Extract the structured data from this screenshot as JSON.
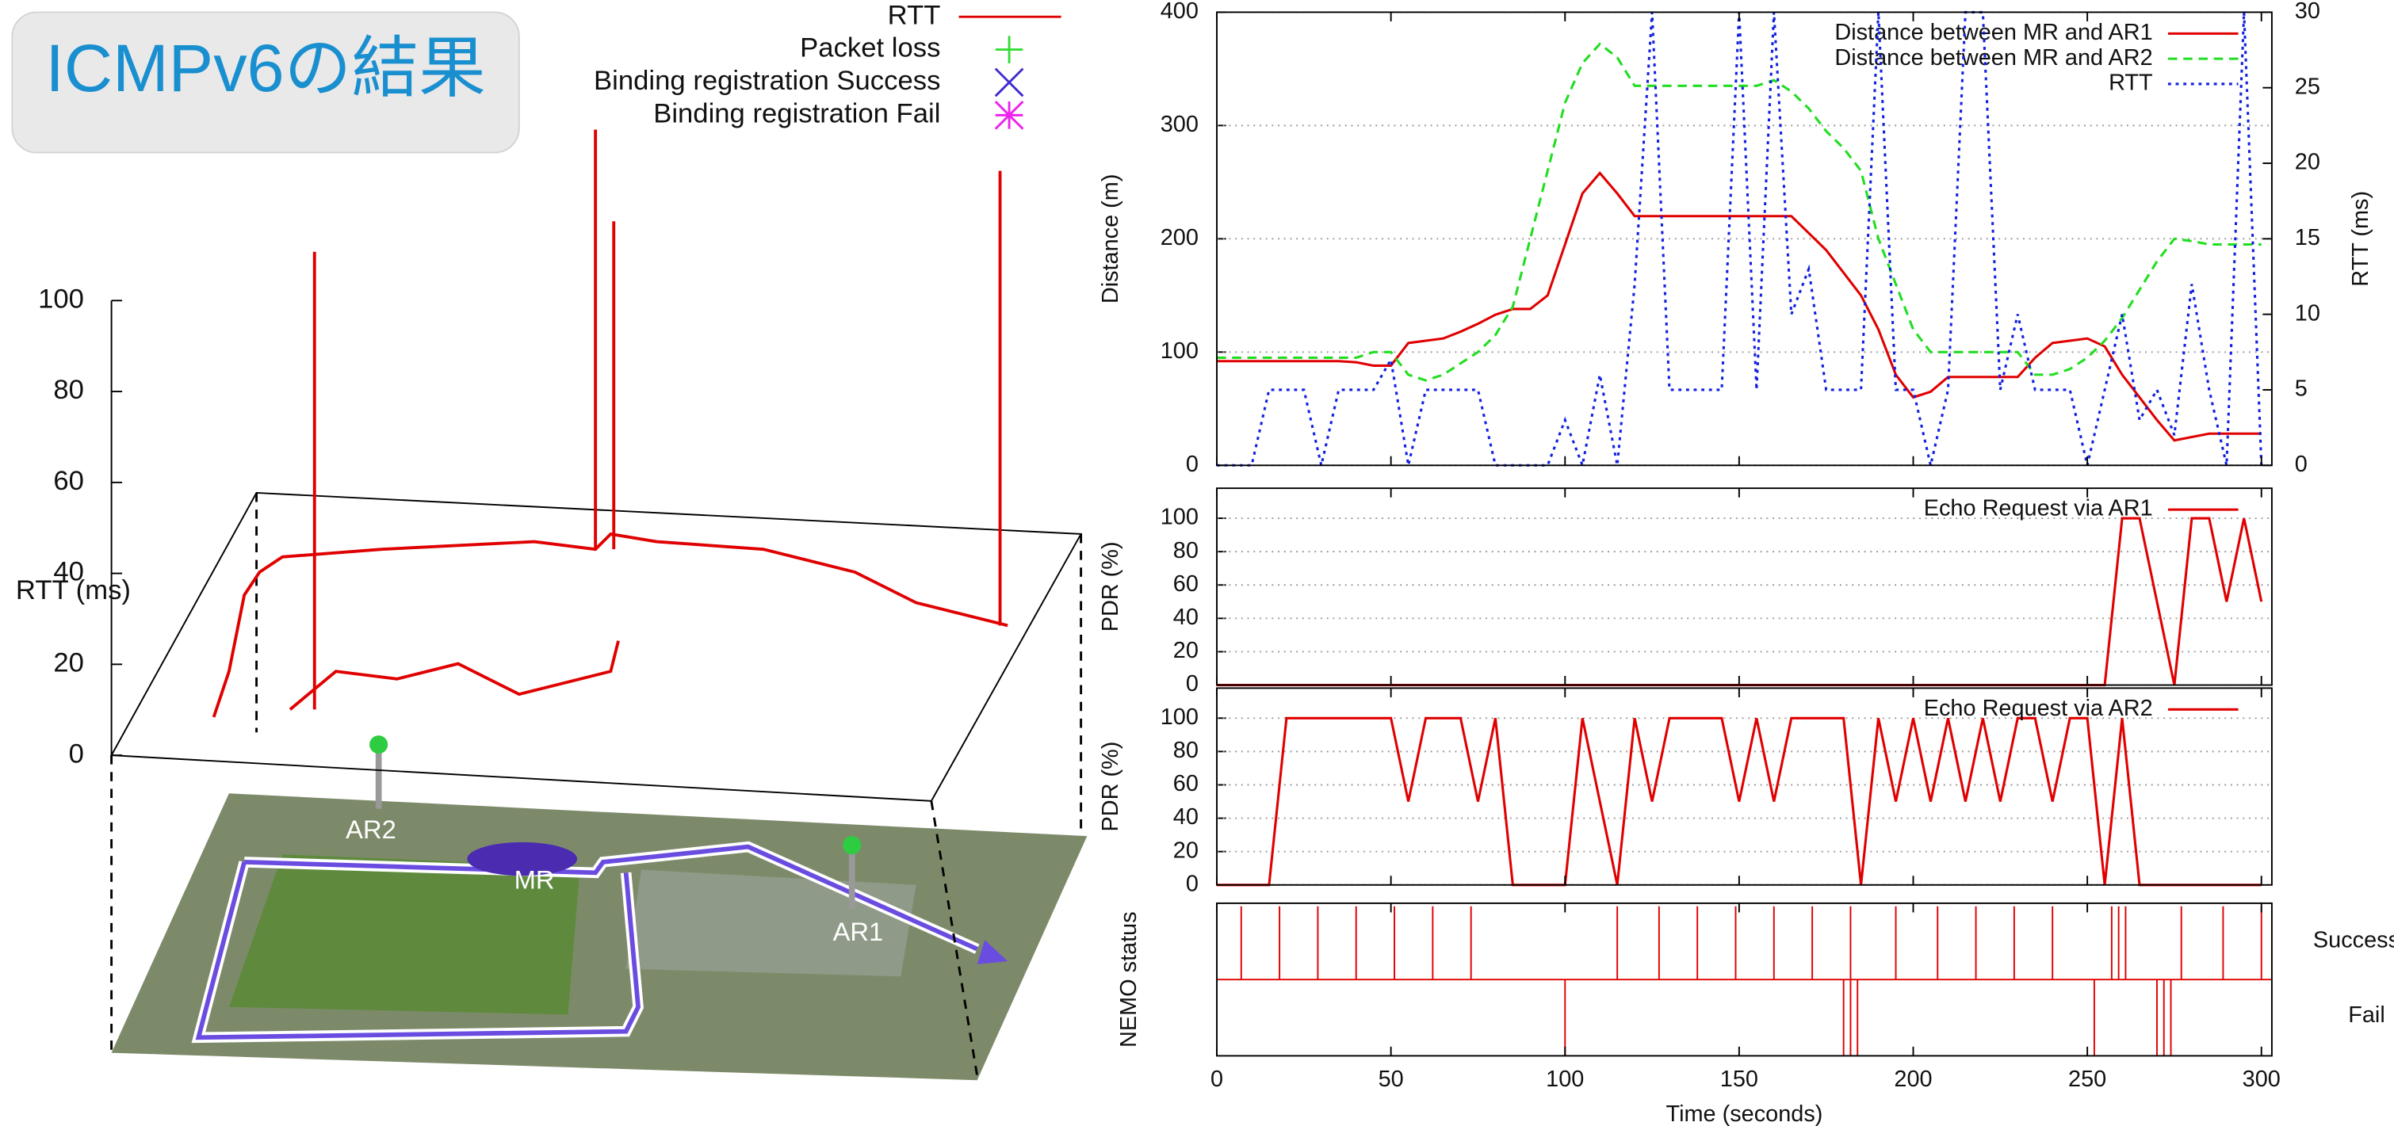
{
  "chart_data": [
    {
      "type": "line3d",
      "title": "ICMPv6の結果",
      "zlabel": "RTT (ms)",
      "zlim": [
        0,
        100
      ],
      "zticks": [
        0,
        20,
        40,
        60,
        80,
        100
      ],
      "series": [
        {
          "name": "RTT",
          "color": "#e00000",
          "marker": "line"
        },
        {
          "name": "Packet loss",
          "color": "#33dd33",
          "marker": "plus"
        },
        {
          "name": "Binding registration Success",
          "color": "#3f2ad0",
          "marker": "cross"
        },
        {
          "name": "Binding registration Fail",
          "color": "#ee22ee",
          "marker": "star"
        }
      ],
      "annotations": [
        "AR2",
        "MR",
        "AR1"
      ]
    },
    {
      "type": "line",
      "ylabel": "Distance (m)",
      "y2label": "RTT (ms)",
      "xlim": [
        0,
        303
      ],
      "ylim": [
        0,
        400
      ],
      "yticks": [
        0,
        100,
        200,
        300,
        400
      ],
      "y2lim": [
        0,
        30
      ],
      "y2ticks": [
        0,
        5,
        10,
        15,
        20,
        25,
        30
      ],
      "grid": true,
      "x": [
        0,
        5,
        10,
        15,
        20,
        25,
        30,
        35,
        40,
        45,
        50,
        55,
        60,
        65,
        70,
        75,
        80,
        85,
        90,
        95,
        100,
        105,
        110,
        115,
        120,
        125,
        130,
        135,
        140,
        145,
        150,
        155,
        160,
        165,
        170,
        175,
        180,
        185,
        190,
        195,
        200,
        205,
        210,
        215,
        220,
        225,
        230,
        235,
        240,
        245,
        250,
        255,
        260,
        265,
        270,
        275,
        280,
        285,
        290,
        295,
        300
      ],
      "series": [
        {
          "name": "Distance between MR and AR1",
          "color": "#e00000",
          "dash": "solid",
          "values": [
            92,
            92,
            92,
            92,
            92,
            92,
            92,
            92,
            91,
            88,
            88,
            108,
            110,
            112,
            118,
            125,
            133,
            138,
            138,
            150,
            195,
            240,
            258,
            240,
            220,
            220,
            220,
            220,
            220,
            220,
            220,
            220,
            220,
            220,
            205,
            190,
            170,
            150,
            120,
            80,
            60,
            65,
            78,
            78,
            78,
            78,
            78,
            95,
            108,
            110,
            112,
            105,
            80,
            60,
            40,
            22,
            25,
            28,
            28,
            28,
            28
          ]
        },
        {
          "name": "Distance between MR and AR2",
          "color": "#22dd22",
          "dash": "dashed",
          "values": [
            95,
            95,
            95,
            95,
            95,
            95,
            95,
            95,
            95,
            100,
            100,
            80,
            75,
            80,
            90,
            100,
            115,
            140,
            200,
            260,
            320,
            355,
            372,
            360,
            335,
            335,
            335,
            335,
            335,
            335,
            335,
            335,
            340,
            330,
            315,
            295,
            280,
            260,
            200,
            160,
            120,
            100,
            100,
            100,
            100,
            100,
            100,
            80,
            80,
            85,
            95,
            110,
            130,
            155,
            180,
            200,
            198,
            195,
            195,
            195,
            195
          ]
        },
        {
          "name": "RTT",
          "color": "#1020e0",
          "dash": "dotted",
          "axis": "y2",
          "values": [
            0,
            0,
            0,
            5,
            5,
            5,
            0,
            5,
            5,
            5,
            7,
            0,
            5,
            5,
            5,
            5,
            0,
            0,
            0,
            0,
            3,
            0,
            6,
            0,
            12,
            30,
            5,
            5,
            5,
            5,
            30,
            5,
            30,
            10,
            13,
            5,
            5,
            5,
            30,
            5,
            5,
            0,
            5,
            30,
            30,
            5,
            10,
            5,
            5,
            5,
            0,
            5,
            10,
            3,
            5,
            2,
            12,
            5,
            0,
            30,
            0
          ]
        }
      ]
    },
    {
      "type": "line",
      "ylabel": "PDR (%)",
      "xlim": [
        0,
        303
      ],
      "ylim": [
        0,
        118
      ],
      "yticks": [
        0,
        20,
        40,
        60,
        80,
        100
      ],
      "grid": true,
      "x": [
        0,
        5,
        10,
        15,
        20,
        25,
        30,
        35,
        40,
        45,
        50,
        55,
        60,
        65,
        70,
        75,
        80,
        85,
        90,
        95,
        100,
        105,
        110,
        115,
        120,
        125,
        130,
        135,
        140,
        145,
        150,
        155,
        160,
        165,
        170,
        175,
        180,
        185,
        190,
        195,
        200,
        205,
        210,
        215,
        220,
        225,
        230,
        235,
        240,
        245,
        250,
        255,
        260,
        265,
        270,
        275,
        280,
        285,
        290,
        295,
        300
      ],
      "series": [
        {
          "name": "Echo Request via AR1",
          "color": "#e00000",
          "dash": "solid",
          "values": [
            0,
            0,
            0,
            0,
            0,
            0,
            0,
            0,
            0,
            0,
            0,
            0,
            0,
            0,
            0,
            0,
            0,
            0,
            0,
            0,
            0,
            0,
            0,
            0,
            0,
            0,
            0,
            0,
            0,
            0,
            0,
            0,
            0,
            0,
            0,
            0,
            0,
            0,
            0,
            0,
            0,
            0,
            0,
            0,
            0,
            0,
            0,
            0,
            0,
            0,
            0,
            0,
            100,
            100,
            50,
            0,
            100,
            100,
            50,
            100,
            50
          ]
        }
      ]
    },
    {
      "type": "line",
      "ylabel": "PDR (%)",
      "xlim": [
        0,
        303
      ],
      "ylim": [
        0,
        118
      ],
      "yticks": [
        0,
        20,
        40,
        60,
        80,
        100
      ],
      "grid": true,
      "x": [
        0,
        5,
        10,
        15,
        20,
        25,
        30,
        35,
        40,
        45,
        50,
        55,
        60,
        65,
        70,
        75,
        80,
        85,
        90,
        95,
        100,
        105,
        110,
        115,
        120,
        125,
        130,
        135,
        140,
        145,
        150,
        155,
        160,
        165,
        170,
        175,
        180,
        185,
        190,
        195,
        200,
        205,
        210,
        215,
        220,
        225,
        230,
        235,
        240,
        245,
        250,
        255,
        260,
        265,
        270,
        275,
        280,
        285,
        290,
        295,
        300
      ],
      "series": [
        {
          "name": "Echo Request via AR2",
          "color": "#e00000",
          "dash": "solid",
          "values": [
            0,
            0,
            0,
            0,
            100,
            100,
            100,
            100,
            100,
            100,
            100,
            50,
            100,
            100,
            100,
            50,
            100,
            0,
            0,
            0,
            0,
            100,
            50,
            0,
            100,
            50,
            100,
            100,
            100,
            100,
            50,
            100,
            50,
            100,
            100,
            100,
            100,
            0,
            100,
            50,
            100,
            50,
            100,
            50,
            100,
            50,
            100,
            100,
            50,
            100,
            100,
            0,
            100,
            0,
            0,
            0,
            0,
            0,
            0,
            0,
            0
          ]
        }
      ]
    },
    {
      "type": "event",
      "ylabel": "NEMO status",
      "xlabel": "Time (seconds)",
      "xlim": [
        0,
        303
      ],
      "xticks": [
        0,
        50,
        100,
        150,
        200,
        250,
        300
      ],
      "states": [
        "Success",
        "Fail"
      ],
      "color": "#e00000",
      "success_x": [
        7,
        18,
        29,
        40,
        51,
        62,
        73,
        115,
        127,
        138,
        149,
        160,
        171,
        182,
        195,
        207,
        218,
        229,
        240,
        257,
        259,
        261,
        277,
        289,
        300
      ],
      "fail_x": [
        100,
        180,
        182,
        184,
        252,
        270,
        272,
        274
      ]
    }
  ]
}
